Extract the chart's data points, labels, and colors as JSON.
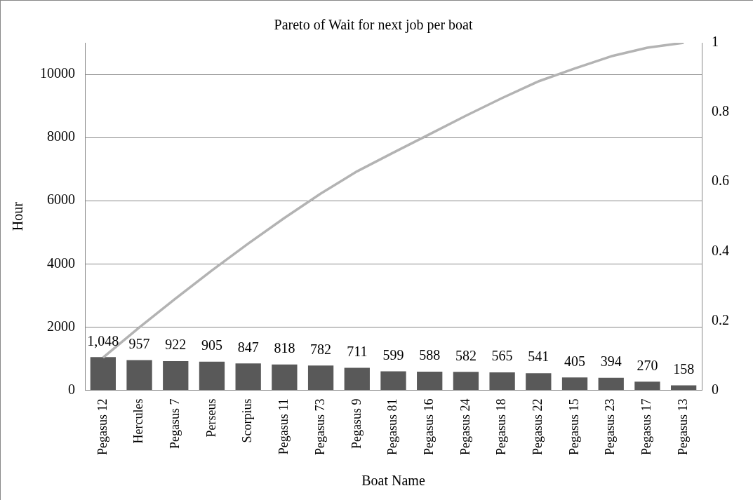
{
  "chart_data": {
    "type": "bar",
    "title": "Pareto of Wait for next job per boat",
    "xlabel": "Boat Name",
    "ylabel": "Hour",
    "categories": [
      "Pegasus 12",
      "Hercules",
      "Pegasus 7",
      "Perseus",
      "Scorpius",
      "Pegasus 11",
      "Pegasus 73",
      "Pegasus 9",
      "Pegasus 81",
      "Pegasus 16",
      "Pegasus 24",
      "Pegasus 18",
      "Pegasus 22",
      "Pegasus 15",
      "Pegasus 23",
      "Pegasus 17",
      "Pegasus 13"
    ],
    "series": [
      {
        "color": "#595959",
        "values": [
          1048,
          957,
          922,
          905,
          847,
          818,
          782,
          711,
          599,
          588,
          582,
          565,
          541,
          405,
          394,
          270,
          158
        ],
        "value_labels": [
          "1,048",
          "957",
          "922",
          "905",
          "847",
          "818",
          "782",
          "711",
          "599",
          "588",
          "582",
          "565",
          "541",
          "405",
          "394",
          "270",
          "158"
        ]
      },
      {
        "type": "line",
        "axis": "y2",
        "color": "#b3b3b3",
        "values": [
          0.094,
          0.181,
          0.264,
          0.345,
          0.422,
          0.496,
          0.566,
          0.63,
          0.684,
          0.737,
          0.79,
          0.841,
          0.889,
          0.926,
          0.961,
          0.986,
          1
        ]
      }
    ],
    "ylim": [
      0,
      11000
    ],
    "yticks": [
      0,
      2000,
      4000,
      6000,
      8000,
      10000
    ],
    "y2lim": [
      0,
      1
    ],
    "y2ticks": [
      0,
      0.2,
      0.4,
      0.6,
      0.8,
      1
    ],
    "grid": "y",
    "legend": false,
    "marker": "none",
    "line_style": "solid"
  }
}
